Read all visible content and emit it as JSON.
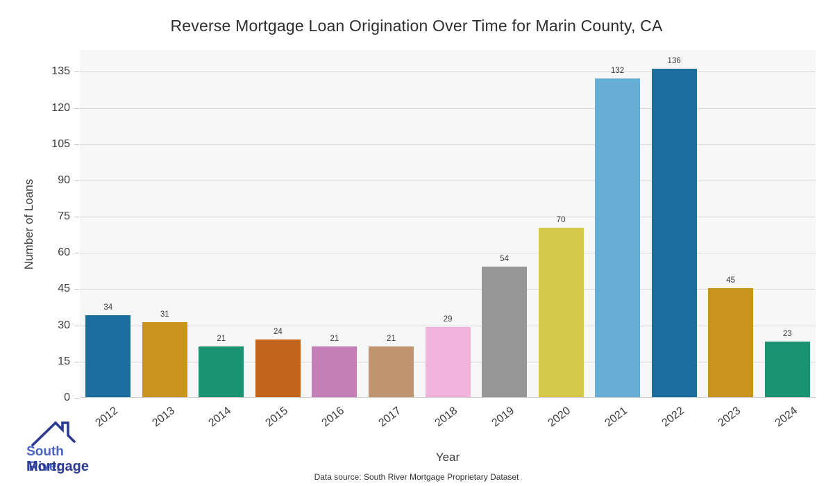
{
  "chart_data": {
    "type": "bar",
    "title": "Reverse Mortgage Loan Origination Over Time for Marin County, CA",
    "xlabel": "Year",
    "ylabel": "Number of Loans",
    "categories": [
      "2012",
      "2013",
      "2014",
      "2015",
      "2016",
      "2017",
      "2018",
      "2019",
      "2020",
      "2021",
      "2022",
      "2023",
      "2024"
    ],
    "values": [
      34,
      31,
      21,
      24,
      21,
      21,
      29,
      54,
      70,
      132,
      136,
      45,
      23
    ],
    "bar_colors": [
      "#1a6f9e",
      "#c9941d",
      "#1b9271",
      "#c2641c",
      "#c480b6",
      "#c0956f",
      "#f2b3dd",
      "#969696",
      "#d4c94a",
      "#66aed6",
      "#1a6f9e",
      "#c9941d",
      "#1b9271"
    ],
    "value_labels": [
      34,
      31,
      21,
      24,
      21,
      21,
      29,
      54,
      70,
      132,
      136,
      45,
      23
    ],
    "yticks": [
      0,
      15,
      30,
      45,
      60,
      75,
      90,
      105,
      120,
      135
    ],
    "ylim": [
      0,
      144
    ],
    "grid": "horizontal",
    "legend": "none",
    "plot_background": "#f7f7f7",
    "grid_color": "#d6d6d6"
  },
  "footer": {
    "source": "Data source: South River Mortgage Proprietary Dataset"
  },
  "logo": {
    "line1": "South River",
    "line2": "Mortgage",
    "line1_color": "#4a62c0",
    "line2_color": "#2b3990",
    "roof_color": "#2b3990"
  }
}
